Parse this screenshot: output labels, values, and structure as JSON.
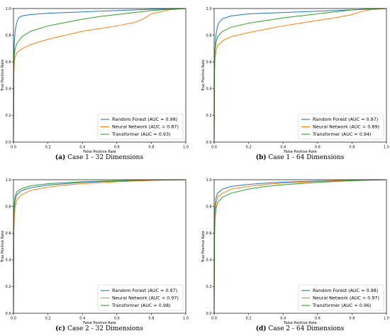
{
  "chart_data": [
    {
      "type": "line",
      "caption_label": "(a)",
      "caption_text": "Case 1 - 32 Dimensions",
      "xlabel": "False Positive Rate",
      "ylabel": "True Positive Rate",
      "xlim": [
        0,
        1
      ],
      "ylim": [
        0,
        1
      ],
      "xticks": [
        "0.0",
        "0.2",
        "0.4",
        "0.6",
        "0.8",
        "1.0"
      ],
      "yticks": [
        "0.0",
        "0.2",
        "0.4",
        "0.6",
        "0.8",
        "1.0"
      ],
      "grid": false,
      "legend_position": "lower-right",
      "series": [
        {
          "name": "Random Forest (AUC = 0.98)",
          "color": "#1f77b4",
          "x": [
            0,
            0.002,
            0.005,
            0.01,
            0.02,
            0.03,
            0.05,
            0.1,
            0.2,
            0.4,
            0.6,
            0.8,
            1.0
          ],
          "y": [
            0,
            0.6,
            0.75,
            0.84,
            0.9,
            0.93,
            0.945,
            0.955,
            0.965,
            0.975,
            0.985,
            0.995,
            1.0
          ]
        },
        {
          "name": "Neural Network (AUC = 0.87)",
          "color": "#ff7f0e",
          "x": [
            0,
            0.002,
            0.005,
            0.01,
            0.02,
            0.05,
            0.1,
            0.2,
            0.3,
            0.4,
            0.5,
            0.6,
            0.7,
            0.75,
            0.8,
            0.9,
            1.0
          ],
          "y": [
            0,
            0.5,
            0.6,
            0.64,
            0.67,
            0.7,
            0.73,
            0.77,
            0.8,
            0.83,
            0.85,
            0.87,
            0.895,
            0.92,
            0.96,
            0.99,
            1.0
          ]
        },
        {
          "name": "Transformer (AUC = 0.93)",
          "color": "#2ca02c",
          "x": [
            0,
            0.002,
            0.005,
            0.01,
            0.02,
            0.05,
            0.1,
            0.2,
            0.3,
            0.4,
            0.5,
            0.6,
            0.7,
            0.8,
            0.9,
            1.0
          ],
          "y": [
            0,
            0.55,
            0.65,
            0.7,
            0.74,
            0.79,
            0.83,
            0.87,
            0.895,
            0.92,
            0.94,
            0.955,
            0.97,
            0.985,
            0.995,
            1.0
          ]
        }
      ]
    },
    {
      "type": "line",
      "caption_label": "(b)",
      "caption_text": "Case 1 - 64 Dimensions",
      "xlabel": "False Positive Rate",
      "ylabel": "True Positive Rate",
      "xlim": [
        0,
        1
      ],
      "ylim": [
        0,
        1
      ],
      "xticks": [
        "0.0",
        "0.2",
        "0.4",
        "0.6",
        "0.8",
        "1.0"
      ],
      "yticks": [
        "0.0",
        "0.2",
        "0.4",
        "0.6",
        "0.8",
        "1.0"
      ],
      "grid": false,
      "legend_position": "lower-right",
      "series": [
        {
          "name": "Random Forest (AUC = 0.97)",
          "color": "#1f77b4",
          "x": [
            0,
            0.002,
            0.005,
            0.01,
            0.02,
            0.03,
            0.05,
            0.1,
            0.2,
            0.4,
            0.6,
            0.8,
            1.0
          ],
          "y": [
            0,
            0.55,
            0.7,
            0.8,
            0.87,
            0.9,
            0.925,
            0.945,
            0.96,
            0.97,
            0.98,
            0.99,
            1.0
          ]
        },
        {
          "name": "Neural Network (AUC = 0.89)",
          "color": "#ff7f0e",
          "x": [
            0,
            0.002,
            0.005,
            0.01,
            0.02,
            0.05,
            0.1,
            0.2,
            0.3,
            0.4,
            0.5,
            0.6,
            0.7,
            0.8,
            0.85,
            0.9,
            1.0
          ],
          "y": [
            0,
            0.5,
            0.62,
            0.68,
            0.72,
            0.76,
            0.79,
            0.82,
            0.845,
            0.87,
            0.89,
            0.91,
            0.93,
            0.955,
            0.975,
            0.99,
            1.0
          ]
        },
        {
          "name": "Transformer (AUC = 0.94)",
          "color": "#2ca02c",
          "x": [
            0,
            0.002,
            0.005,
            0.01,
            0.02,
            0.05,
            0.1,
            0.2,
            0.3,
            0.4,
            0.5,
            0.6,
            0.7,
            0.8,
            0.9,
            1.0
          ],
          "y": [
            0,
            0.58,
            0.68,
            0.74,
            0.79,
            0.83,
            0.86,
            0.89,
            0.91,
            0.93,
            0.945,
            0.96,
            0.975,
            0.99,
            0.997,
            1.0
          ]
        }
      ]
    },
    {
      "type": "line",
      "caption_label": "(c)",
      "caption_text": "Case 2 - 32 Dimensions",
      "xlabel": "False Positive Rate",
      "ylabel": "True Positive Rate",
      "xlim": [
        0,
        1
      ],
      "ylim": [
        0,
        1
      ],
      "xticks": [
        "0.0",
        "0.2",
        "0.4",
        "0.6",
        "0.8",
        "1.0"
      ],
      "yticks": [
        "0.0",
        "0.2",
        "0.4",
        "0.6",
        "0.8",
        "1.0"
      ],
      "grid": false,
      "legend_position": "lower-right",
      "series": [
        {
          "name": "Random Forest (AUC = 0.97)",
          "color": "#1f77b4",
          "x": [
            0,
            0.002,
            0.005,
            0.01,
            0.02,
            0.05,
            0.1,
            0.2,
            0.3,
            0.4,
            0.6,
            0.8,
            1.0
          ],
          "y": [
            0,
            0.6,
            0.78,
            0.85,
            0.89,
            0.92,
            0.94,
            0.96,
            0.97,
            0.98,
            0.99,
            0.997,
            1.0
          ]
        },
        {
          "name": "Neural Network (AUC = 0.97)",
          "color": "#ff7f0e",
          "x": [
            0,
            0.002,
            0.005,
            0.01,
            0.02,
            0.05,
            0.1,
            0.2,
            0.3,
            0.4,
            0.6,
            0.8,
            1.0
          ],
          "y": [
            0,
            0.6,
            0.72,
            0.8,
            0.85,
            0.89,
            0.92,
            0.945,
            0.96,
            0.97,
            0.985,
            0.995,
            1.0
          ]
        },
        {
          "name": "Transformer (AUC = 0.98)",
          "color": "#2ca02c",
          "x": [
            0,
            0.002,
            0.005,
            0.01,
            0.02,
            0.05,
            0.1,
            0.2,
            0.3,
            0.4,
            0.6,
            0.8,
            1.0
          ],
          "y": [
            0,
            0.7,
            0.82,
            0.88,
            0.91,
            0.935,
            0.955,
            0.97,
            0.978,
            0.985,
            0.993,
            0.998,
            1.0
          ]
        }
      ]
    },
    {
      "type": "line",
      "caption_label": "(d)",
      "caption_text": "Case 2 - 64 Dimensions",
      "xlabel": "False Positive Rate",
      "ylabel": "True Positive Rate",
      "xlim": [
        0,
        1
      ],
      "ylim": [
        0,
        1
      ],
      "xticks": [
        "0.0",
        "0.2",
        "0.4",
        "0.6",
        "0.8",
        "1.0"
      ],
      "yticks": [
        "0.0",
        "0.2",
        "0.4",
        "0.6",
        "0.8",
        "1.0"
      ],
      "grid": false,
      "legend_position": "lower-right",
      "series": [
        {
          "name": "Random Forest (AUC = 0.98)",
          "color": "#1f77b4",
          "x": [
            0,
            0.002,
            0.005,
            0.01,
            0.02,
            0.05,
            0.1,
            0.2,
            0.3,
            0.4,
            0.6,
            0.8,
            1.0
          ],
          "y": [
            0,
            0.65,
            0.8,
            0.86,
            0.9,
            0.93,
            0.95,
            0.965,
            0.975,
            0.982,
            0.99,
            0.997,
            1.0
          ]
        },
        {
          "name": "Neural Network (AUC = 0.97)",
          "color": "#ff7f0e",
          "x": [
            0,
            0.002,
            0.005,
            0.01,
            0.02,
            0.05,
            0.1,
            0.2,
            0.3,
            0.4,
            0.6,
            0.8,
            1.0
          ],
          "y": [
            0,
            0.6,
            0.75,
            0.82,
            0.87,
            0.9,
            0.93,
            0.95,
            0.965,
            0.975,
            0.987,
            0.996,
            1.0
          ]
        },
        {
          "name": "Transformer (AUC = 0.96)",
          "color": "#2ca02c",
          "x": [
            0,
            0.002,
            0.005,
            0.01,
            0.02,
            0.05,
            0.1,
            0.2,
            0.3,
            0.4,
            0.6,
            0.8,
            1.0
          ],
          "y": [
            0,
            0.55,
            0.7,
            0.78,
            0.83,
            0.87,
            0.9,
            0.93,
            0.95,
            0.962,
            0.98,
            0.993,
            1.0
          ]
        }
      ]
    }
  ]
}
